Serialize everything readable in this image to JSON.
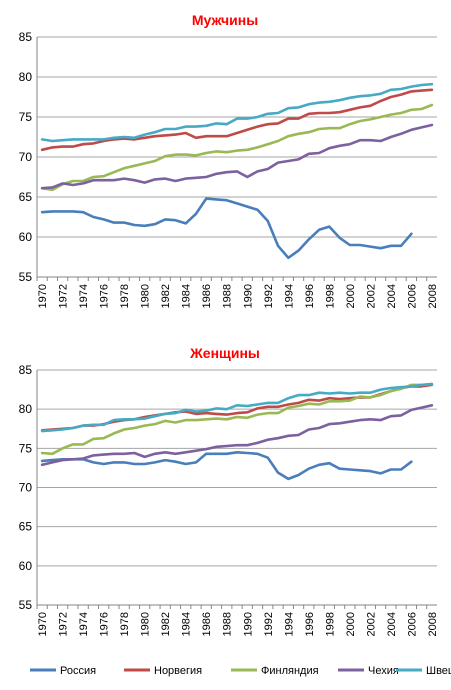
{
  "chart_data": [
    {
      "type": "line",
      "title": "Мужчины",
      "ylim": [
        55,
        85
      ],
      "yticks": [
        55,
        60,
        65,
        70,
        75,
        80,
        85
      ],
      "grid": true,
      "x_tick_labels": [
        "1970",
        "1972",
        "1974",
        "1976",
        "1978",
        "1980",
        "1982",
        "1984",
        "1986",
        "1988",
        "1990",
        "1992",
        "1994",
        "1996",
        "1998",
        "2000",
        "2002",
        "2004",
        "2006",
        "2008"
      ],
      "x": [
        1970,
        1971,
        1972,
        1973,
        1974,
        1975,
        1976,
        1977,
        1978,
        1979,
        1980,
        1981,
        1982,
        1983,
        1984,
        1985,
        1986,
        1987,
        1988,
        1989,
        1990,
        1991,
        1992,
        1993,
        1994,
        1995,
        1996,
        1997,
        1998,
        1999,
        2000,
        2001,
        2002,
        2003,
        2004,
        2005,
        2006,
        2007,
        2008
      ],
      "series": [
        {
          "name": "Россия",
          "color": "#4a7ebb",
          "values": [
            63.1,
            63.2,
            63.2,
            63.2,
            63.1,
            62.5,
            62.2,
            61.8,
            61.8,
            61.5,
            61.4,
            61.6,
            62.2,
            62.1,
            61.7,
            62.9,
            64.8,
            64.7,
            64.6,
            64.2,
            63.8,
            63.4,
            62.0,
            58.9,
            57.4,
            58.3,
            59.7,
            60.9,
            61.3,
            59.9,
            59.0,
            59.0,
            58.8,
            58.6,
            58.9,
            58.9,
            60.4,
            null,
            null
          ]
        },
        {
          "name": "Норвегия",
          "color": "#be4b48",
          "values": [
            70.9,
            71.2,
            71.3,
            71.3,
            71.6,
            71.7,
            72.0,
            72.2,
            72.3,
            72.2,
            72.4,
            72.6,
            72.7,
            72.8,
            73.0,
            72.4,
            72.6,
            72.6,
            72.6,
            73.0,
            73.4,
            73.8,
            74.1,
            74.2,
            74.8,
            74.8,
            75.4,
            75.5,
            75.5,
            75.6,
            75.9,
            76.2,
            76.4,
            77.0,
            77.5,
            77.8,
            78.2,
            78.3,
            78.4
          ]
        },
        {
          "name": "Финляндия",
          "color": "#98b954",
          "values": [
            66.1,
            65.9,
            66.6,
            67.0,
            67.0,
            67.5,
            67.6,
            68.1,
            68.6,
            68.9,
            69.2,
            69.5,
            70.1,
            70.3,
            70.3,
            70.2,
            70.5,
            70.7,
            70.6,
            70.8,
            70.9,
            71.2,
            71.6,
            72.0,
            72.6,
            72.9,
            73.1,
            73.5,
            73.6,
            73.6,
            74.1,
            74.5,
            74.7,
            75.0,
            75.3,
            75.5,
            75.9,
            76.0,
            76.5
          ]
        },
        {
          "name": "Чехия",
          "color": "#7d60a0",
          "values": [
            66.1,
            66.2,
            66.7,
            66.5,
            66.7,
            67.1,
            67.1,
            67.1,
            67.3,
            67.1,
            66.8,
            67.2,
            67.3,
            67.0,
            67.3,
            67.4,
            67.5,
            67.9,
            68.1,
            68.2,
            67.5,
            68.2,
            68.5,
            69.3,
            69.5,
            69.7,
            70.4,
            70.5,
            71.1,
            71.4,
            71.6,
            72.1,
            72.1,
            72.0,
            72.5,
            72.9,
            73.4,
            73.7,
            74.0
          ]
        },
        {
          "name": "Швеция",
          "color": "#46aac5",
          "values": [
            72.2,
            72.0,
            72.1,
            72.2,
            72.2,
            72.2,
            72.2,
            72.4,
            72.5,
            72.4,
            72.8,
            73.1,
            73.5,
            73.5,
            73.8,
            73.8,
            73.9,
            74.2,
            74.1,
            74.8,
            74.8,
            75.0,
            75.4,
            75.5,
            76.1,
            76.2,
            76.6,
            76.8,
            76.9,
            77.1,
            77.4,
            77.6,
            77.7,
            77.9,
            78.4,
            78.5,
            78.8,
            79.0,
            79.1
          ]
        }
      ]
    },
    {
      "type": "line",
      "title": "Женщины",
      "ylim": [
        55,
        85
      ],
      "yticks": [
        55,
        60,
        65,
        70,
        75,
        80,
        85
      ],
      "grid": true,
      "x_tick_labels": [
        "1970",
        "1972",
        "1974",
        "1976",
        "1978",
        "1980",
        "1982",
        "1984",
        "1986",
        "1988",
        "1990",
        "1992",
        "1994",
        "1996",
        "1998",
        "2000",
        "2002",
        "2004",
        "2006",
        "2008"
      ],
      "x": [
        1970,
        1971,
        1972,
        1973,
        1974,
        1975,
        1976,
        1977,
        1978,
        1979,
        1980,
        1981,
        1982,
        1983,
        1984,
        1985,
        1986,
        1987,
        1988,
        1989,
        1990,
        1991,
        1992,
        1993,
        1994,
        1995,
        1996,
        1997,
        1998,
        1999,
        2000,
        2001,
        2002,
        2003,
        2004,
        2005,
        2006,
        2007,
        2008
      ],
      "series": [
        {
          "name": "Россия",
          "color": "#4a7ebb",
          "values": [
            73.4,
            73.5,
            73.6,
            73.6,
            73.6,
            73.2,
            73.0,
            73.2,
            73.2,
            73.0,
            73.0,
            73.2,
            73.5,
            73.3,
            73.0,
            73.2,
            74.3,
            74.3,
            74.3,
            74.5,
            74.4,
            74.3,
            73.8,
            71.9,
            71.1,
            71.6,
            72.4,
            72.9,
            73.1,
            72.4,
            72.3,
            72.2,
            72.1,
            71.8,
            72.3,
            72.3,
            73.3,
            null,
            null
          ]
        },
        {
          "name": "Норвегия",
          "color": "#be4b48",
          "values": [
            77.3,
            77.4,
            77.5,
            77.6,
            77.9,
            77.9,
            78.1,
            78.4,
            78.6,
            78.7,
            79.0,
            79.2,
            79.4,
            79.6,
            79.7,
            79.4,
            79.5,
            79.4,
            79.3,
            79.5,
            79.6,
            80.1,
            80.3,
            80.3,
            80.6,
            80.8,
            81.2,
            81.1,
            81.4,
            81.3,
            81.4,
            81.5,
            81.5,
            81.9,
            82.3,
            82.7,
            82.9,
            82.9,
            83.1
          ]
        },
        {
          "name": "Финляндия",
          "color": "#98b954",
          "values": [
            74.4,
            74.3,
            75.0,
            75.5,
            75.5,
            76.2,
            76.3,
            76.9,
            77.4,
            77.6,
            77.9,
            78.1,
            78.5,
            78.3,
            78.6,
            78.6,
            78.7,
            78.8,
            78.7,
            79.0,
            78.9,
            79.3,
            79.5,
            79.5,
            80.2,
            80.4,
            80.7,
            80.6,
            81.0,
            81.0,
            81.1,
            81.6,
            81.5,
            81.8,
            82.3,
            82.6,
            83.1,
            83.1,
            83.2
          ]
        },
        {
          "name": "Чехия",
          "color": "#7d60a0",
          "values": [
            72.9,
            73.2,
            73.5,
            73.6,
            73.7,
            74.1,
            74.2,
            74.3,
            74.3,
            74.4,
            73.9,
            74.3,
            74.5,
            74.3,
            74.5,
            74.7,
            74.9,
            75.2,
            75.3,
            75.4,
            75.4,
            75.7,
            76.1,
            76.3,
            76.6,
            76.7,
            77.4,
            77.6,
            78.1,
            78.2,
            78.4,
            78.6,
            78.7,
            78.6,
            79.1,
            79.2,
            79.9,
            80.2,
            80.5
          ]
        },
        {
          "name": "Швеция",
          "color": "#46aac5",
          "values": [
            77.2,
            77.3,
            77.4,
            77.6,
            77.9,
            78.0,
            78.0,
            78.6,
            78.7,
            78.7,
            78.8,
            79.1,
            79.4,
            79.5,
            79.9,
            79.7,
            79.8,
            80.1,
            80.0,
            80.5,
            80.4,
            80.6,
            80.8,
            80.8,
            81.4,
            81.8,
            81.8,
            82.1,
            82.0,
            82.1,
            82.0,
            82.1,
            82.1,
            82.5,
            82.7,
            82.8,
            82.9,
            83.1,
            83.2
          ]
        }
      ]
    }
  ],
  "legend": {
    "position": "bottom",
    "items": [
      {
        "label": "Россия",
        "color": "#4a7ebb"
      },
      {
        "label": "Норвегия",
        "color": "#be4b48"
      },
      {
        "label": "Финляндия",
        "color": "#98b954"
      },
      {
        "label": "Чехия",
        "color": "#7d60a0"
      },
      {
        "label": "Швеция",
        "color": "#46aac5"
      }
    ]
  }
}
